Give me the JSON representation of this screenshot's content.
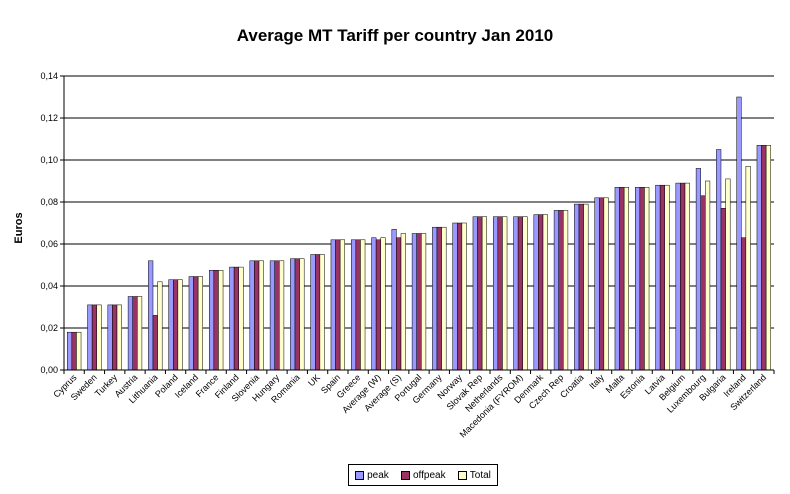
{
  "chart_data": {
    "type": "bar",
    "title": "Average MT Tariff per country Jan 2010",
    "xlabel": "",
    "ylabel": "Euros",
    "ylim": [
      0,
      0.14
    ],
    "yticks": [
      "0,00",
      "0,02",
      "0,04",
      "0,06",
      "0,08",
      "0,10",
      "0,12",
      "0,14"
    ],
    "grid": true,
    "legend_position": "bottom",
    "categories": [
      "Cyprus",
      "Sweden",
      "Turkey",
      "Austria",
      "Lithuania",
      "Poland",
      "Iceland",
      "France",
      "Finland",
      "Slovenia",
      "Hungary",
      "Romania",
      "UK",
      "Spain",
      "Greece",
      "Average (W)",
      "Average (S)",
      "Portugal",
      "Germany",
      "Norway",
      "Slovak Rep",
      "Netherlands",
      "Macedonia (FYROM)",
      "Denmark",
      "Czech Rep",
      "Croatia",
      "Italy",
      "Malta",
      "Estonia",
      "Latvia",
      "Belgium",
      "Luxembourg",
      "Bulgaria",
      "Ireland",
      "Switzerland"
    ],
    "series": [
      {
        "name": "peak",
        "color": "#9999ff",
        "values": [
          0.018,
          0.031,
          0.031,
          0.035,
          0.052,
          0.043,
          0.0445,
          0.0475,
          0.049,
          0.052,
          0.052,
          0.053,
          0.055,
          0.062,
          0.062,
          0.063,
          0.067,
          0.065,
          0.068,
          0.07,
          0.073,
          0.073,
          0.073,
          0.074,
          0.076,
          0.079,
          0.082,
          0.087,
          0.087,
          0.088,
          0.089,
          0.096,
          0.105,
          0.13,
          0.107
        ]
      },
      {
        "name": "offpeak",
        "color": "#993366",
        "values": [
          0.018,
          0.031,
          0.031,
          0.035,
          0.026,
          0.043,
          0.0445,
          0.0475,
          0.049,
          0.052,
          0.052,
          0.053,
          0.055,
          0.062,
          0.062,
          0.062,
          0.063,
          0.065,
          0.068,
          0.07,
          0.073,
          0.073,
          0.073,
          0.074,
          0.076,
          0.079,
          0.082,
          0.087,
          0.087,
          0.088,
          0.089,
          0.083,
          0.077,
          0.063,
          0.107
        ]
      },
      {
        "name": "Total",
        "color": "#ffffcc",
        "values": [
          0.018,
          0.031,
          0.031,
          0.035,
          0.042,
          0.043,
          0.0445,
          0.0475,
          0.049,
          0.052,
          0.052,
          0.053,
          0.055,
          0.062,
          0.062,
          0.063,
          0.065,
          0.065,
          0.068,
          0.07,
          0.073,
          0.073,
          0.073,
          0.074,
          0.076,
          0.079,
          0.082,
          0.087,
          0.087,
          0.088,
          0.089,
          0.09,
          0.091,
          0.097,
          0.107
        ]
      }
    ]
  }
}
